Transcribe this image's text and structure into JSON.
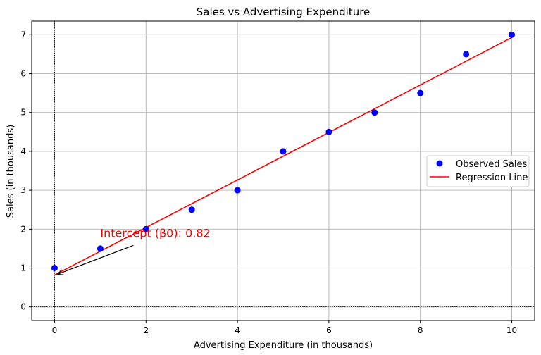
{
  "chart_data": {
    "type": "scatter",
    "title": "Sales vs Advertising Expenditure",
    "xlabel": "Advertising Expenditure (in thousands)",
    "ylabel": "Sales (in thousands)",
    "xlim": [
      -0.5,
      10.5
    ],
    "ylim": [
      -0.35,
      7.35
    ],
    "xticks": [
      0,
      2,
      4,
      6,
      8,
      10
    ],
    "yticks": [
      0,
      1,
      2,
      3,
      4,
      5,
      6,
      7
    ],
    "grid": true,
    "legend_position": "center-right",
    "series": [
      {
        "name": "Observed Sales",
        "kind": "scatter",
        "color": "#0000ff",
        "x": [
          0,
          1,
          2,
          3,
          4,
          5,
          6,
          7,
          8,
          9,
          10
        ],
        "y": [
          1,
          1.5,
          2,
          2.5,
          3,
          4,
          4.5,
          5,
          5.5,
          6.5,
          7
        ]
      },
      {
        "name": "Regression Line",
        "kind": "line",
        "color": "#ff0000",
        "x": [
          0,
          10
        ],
        "y": [
          0.82,
          6.93
        ]
      }
    ],
    "reference_lines": [
      {
        "axis": "x",
        "value": 0,
        "style": "dotted",
        "color": "#000000"
      },
      {
        "axis": "y",
        "value": 0,
        "style": "dotted",
        "color": "#000000"
      }
    ],
    "annotation": {
      "text": "Intercept (β0): 0.82",
      "color": "#ff0000",
      "point": [
        0,
        0.82
      ],
      "text_at": [
        1,
        1.8
      ]
    }
  }
}
